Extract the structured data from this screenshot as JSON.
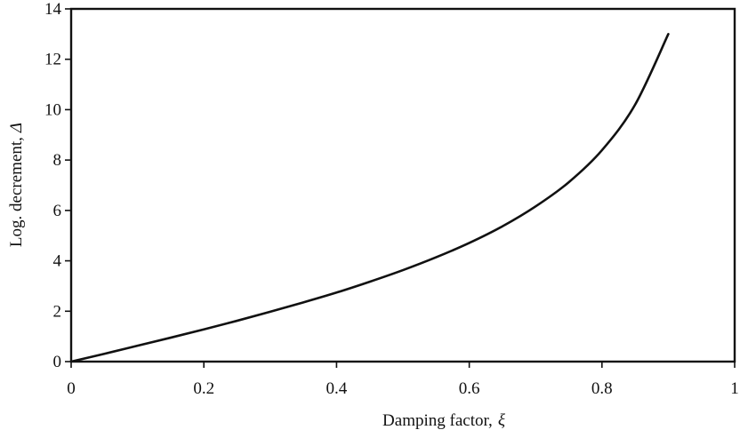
{
  "chart_data": {
    "type": "line",
    "title": "",
    "xlabel": "Damping factor,",
    "xlabel_symbol": "ξ",
    "ylabel": "Log. decrement,",
    "ylabel_symbol": "Δ",
    "xlim": [
      0,
      1
    ],
    "ylim": [
      0,
      14
    ],
    "xticks": [
      {
        "value": 0,
        "label": "0"
      },
      {
        "value": 0.2,
        "label": "0.2"
      },
      {
        "value": 0.4,
        "label": "0.4"
      },
      {
        "value": 0.6,
        "label": "0.6"
      },
      {
        "value": 0.8,
        "label": "0.8"
      },
      {
        "value": 1,
        "label": "1"
      }
    ],
    "yticks": [
      {
        "value": 0,
        "label": "0"
      },
      {
        "value": 2,
        "label": "2"
      },
      {
        "value": 4,
        "label": "4"
      },
      {
        "value": 6,
        "label": "6"
      },
      {
        "value": 8,
        "label": "8"
      },
      {
        "value": 10,
        "label": "10"
      },
      {
        "value": 12,
        "label": "12"
      },
      {
        "value": 14,
        "label": "14"
      }
    ],
    "grid": false,
    "legend": "none",
    "series": [
      {
        "x": [
          0,
          0.05,
          0.1,
          0.15,
          0.2,
          0.25,
          0.3,
          0.35,
          0.4,
          0.45,
          0.5,
          0.55,
          0.6,
          0.65,
          0.7,
          0.75,
          0.8,
          0.85,
          0.9
        ],
        "y": [
          0,
          0.31,
          0.63,
          0.95,
          1.28,
          1.62,
          1.98,
          2.35,
          2.74,
          3.17,
          3.63,
          4.14,
          4.71,
          5.37,
          6.16,
          7.12,
          8.39,
          10.2,
          13.0
        ],
        "color": "#111111"
      }
    ]
  }
}
